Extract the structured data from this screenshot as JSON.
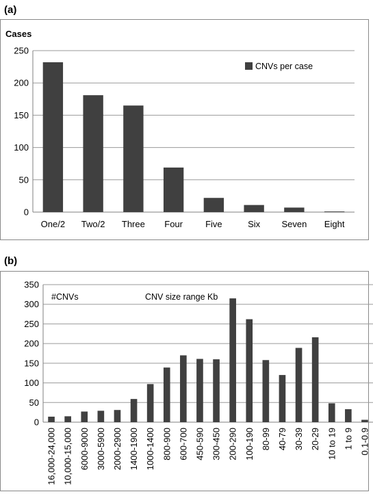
{
  "chart_data": [
    {
      "panel_label": "(a)",
      "type": "bar",
      "ylabel": "Cases",
      "ylim": [
        0,
        250
      ],
      "yticks": [
        0,
        50,
        100,
        150,
        200,
        250
      ],
      "grid": true,
      "legend_position": "top-right",
      "categories": [
        "One/2",
        "Two/2",
        "Three",
        "Four",
        "Five",
        "Six",
        "Seven",
        "Eight"
      ],
      "series": [
        {
          "name": "CNVs per case",
          "color": "#404040",
          "values": [
            232,
            181,
            165,
            69,
            22,
            11,
            7,
            1
          ]
        }
      ]
    },
    {
      "panel_label": "(b)",
      "type": "bar",
      "series_label": "#CNVs",
      "annotation": "CNV size range  Kb",
      "ylim": [
        0,
        350
      ],
      "yticks": [
        0,
        50,
        100,
        150,
        200,
        250,
        300,
        350
      ],
      "grid": true,
      "categories": [
        "16,000-24,000",
        "10,000-15,000",
        "6000-9000",
        "3000-5900",
        "2000-2900",
        "1400-1900",
        "1000-1400",
        "800-900",
        "600-700",
        "450-590",
        "300-450",
        "200-290",
        "100-190",
        "80-99",
        "40-79",
        "30-39",
        "20-29",
        "10 to 19",
        "1 to 9",
        "0.1-0.9"
      ],
      "series": [
        {
          "color": "#404040",
          "values": [
            14,
            15,
            27,
            29,
            31,
            59,
            97,
            139,
            170,
            161,
            160,
            315,
            262,
            158,
            120,
            189,
            216,
            48,
            33,
            6
          ]
        }
      ]
    }
  ]
}
